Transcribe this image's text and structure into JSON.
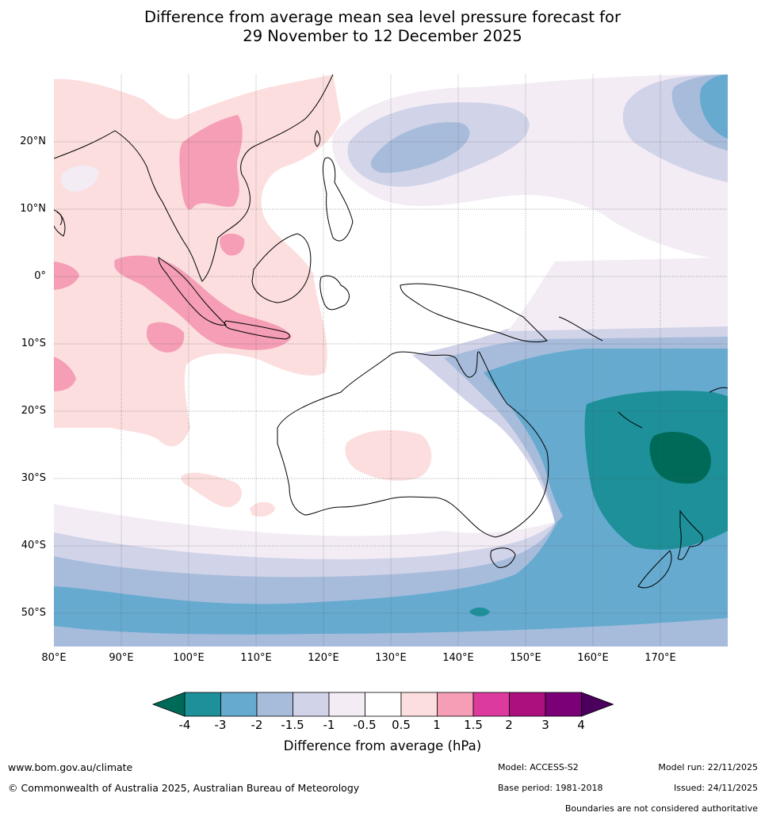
{
  "title": {
    "line1": "Difference from average mean sea level pressure forecast for",
    "line2": "29 November to 12 December 2025"
  },
  "map": {
    "lat_labels": [
      "20°N",
      "10°N",
      "0°",
      "10°S",
      "20°S",
      "30°S",
      "40°S",
      "50°S"
    ],
    "lon_labels": [
      "80°E",
      "90°E",
      "100°E",
      "110°E",
      "120°E",
      "130°E",
      "140°E",
      "150°E",
      "160°E",
      "170°E"
    ],
    "extent": {
      "lon_min": 80,
      "lon_max": 180,
      "lat_min": -55,
      "lat_max": 30
    }
  },
  "colorbar": {
    "title": "Difference from average (hPa)",
    "ticks": [
      "-4",
      "-3",
      "-2",
      "-1.5",
      "-1",
      "-0.5",
      "0.5",
      "1",
      "1.5",
      "2",
      "3",
      "4"
    ],
    "colors": [
      "#006a59",
      "#1d9099",
      "#66aad0",
      "#a7bcdb",
      "#d1d3e8",
      "#f3ecf5",
      "#ffffff",
      "#fcdede",
      "#f59eb6",
      "#dc3a9d",
      "#ac0f7e",
      "#7b0077",
      "#4b005e"
    ]
  },
  "footer": {
    "website": "www.bom.gov.au/climate",
    "copyright": "© Commonwealth of Australia 2025, Australian Bureau of Meteorology",
    "model": "Model: ACCESS-S2",
    "base_period": "Base period: 1981-2018",
    "model_run": "Model run: 22/11/2025",
    "issued": "Issued: 24/11/2025",
    "disclaimer": "Boundaries are not considered authoritative"
  }
}
